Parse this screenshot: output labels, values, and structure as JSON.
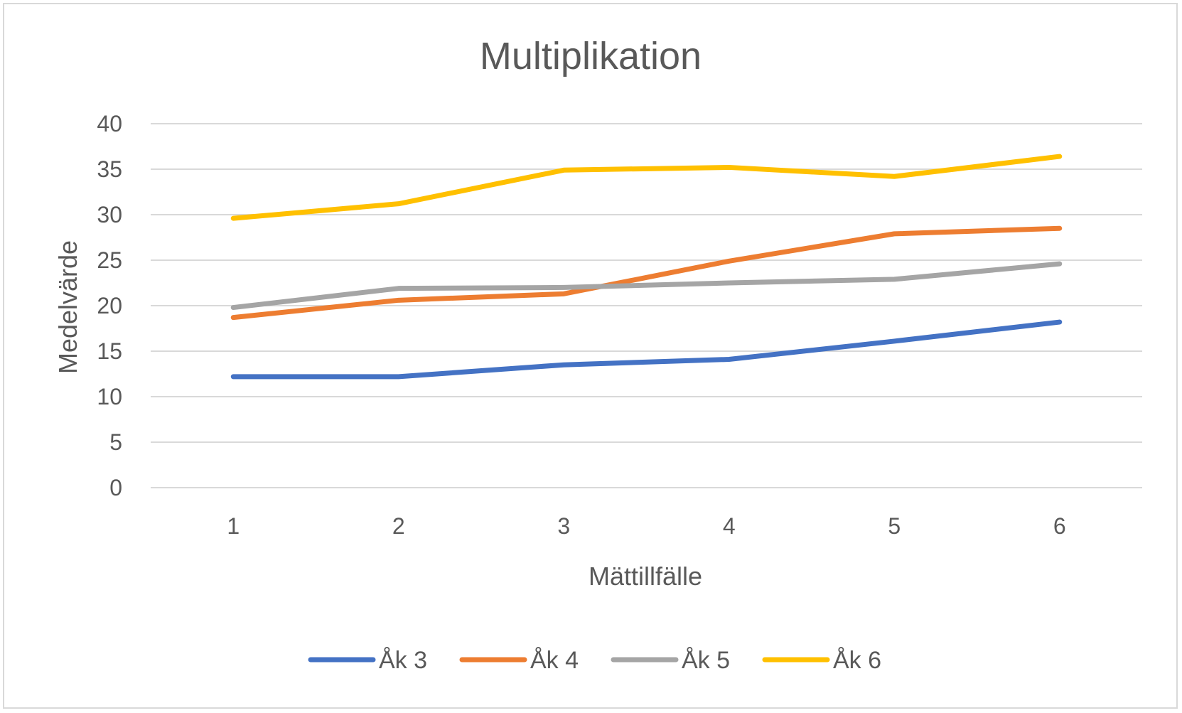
{
  "chart_data": {
    "type": "line",
    "title": "Multiplikation",
    "xlabel": "Mättillfälle",
    "ylabel": "Medelvärde",
    "categories": [
      "1",
      "2",
      "3",
      "4",
      "5",
      "6"
    ],
    "y_ticks": [
      "0",
      "5",
      "10",
      "15",
      "20",
      "25",
      "30",
      "35",
      "40"
    ],
    "ylim": [
      0,
      40
    ],
    "grid": true,
    "legend_position": "bottom",
    "series": [
      {
        "name": "Åk 3",
        "color": "#4472C4",
        "values": [
          12.2,
          12.2,
          13.5,
          14.1,
          16.1,
          18.2
        ]
      },
      {
        "name": "Åk 4",
        "color": "#ED7D31",
        "values": [
          18.7,
          20.6,
          21.3,
          24.9,
          27.9,
          28.5
        ]
      },
      {
        "name": "Åk 5",
        "color": "#A5A5A5",
        "values": [
          19.8,
          21.9,
          22.0,
          22.5,
          22.9,
          24.6
        ]
      },
      {
        "name": "Åk 6",
        "color": "#FFC000",
        "values": [
          29.6,
          31.2,
          34.9,
          35.2,
          34.2,
          36.4
        ]
      }
    ]
  }
}
